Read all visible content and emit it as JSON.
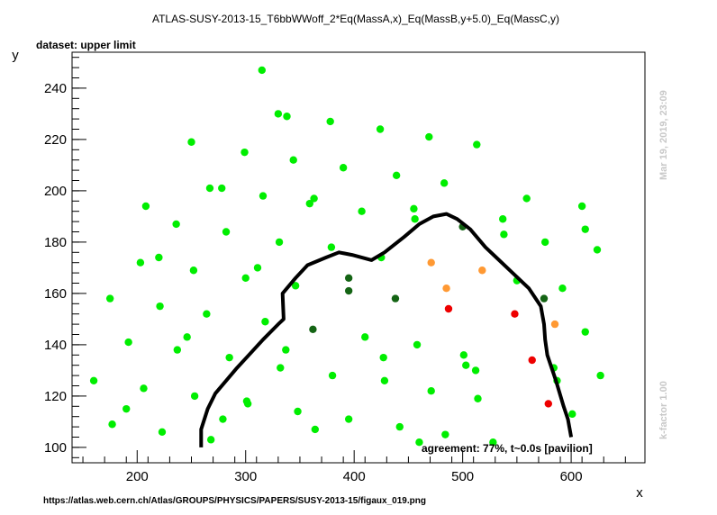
{
  "chart_data": {
    "type": "scatter",
    "title": "ATLAS-SUSY-2013-15_T6bbWWoff_2*Eq(MassA,x)_Eq(MassB,y+5.0)_Eq(MassC,y)",
    "subtitle": "dataset: upper limit",
    "xlabel": "x",
    "ylabel": "y",
    "xlim": [
      140,
      668
    ],
    "ylim": [
      94,
      254
    ],
    "x_ticks": [
      200,
      300,
      400,
      500,
      600
    ],
    "y_ticks": [
      100,
      120,
      140,
      160,
      180,
      200,
      220,
      240
    ],
    "grid": false,
    "colors": {
      "bright_green": "#00ee00",
      "dark_green": "#146414",
      "orange": "#ff9933",
      "red": "#ee0000",
      "curve": "#000000",
      "side_text": "#c8c8c8"
    },
    "series": [
      {
        "color": "bright_green",
        "points": [
          [
            160,
            126
          ],
          [
            175,
            158
          ],
          [
            177,
            109
          ],
          [
            190,
            115
          ],
          [
            192,
            141
          ],
          [
            203,
            172
          ],
          [
            206,
            123
          ],
          [
            208,
            194
          ],
          [
            220,
            174
          ],
          [
            221,
            155
          ],
          [
            223,
            106
          ],
          [
            236,
            187
          ],
          [
            237,
            138
          ],
          [
            246,
            143
          ],
          [
            250,
            219
          ],
          [
            252,
            169
          ],
          [
            253,
            120
          ],
          [
            264,
            152
          ],
          [
            267,
            201
          ],
          [
            268,
            103
          ],
          [
            278,
            201
          ],
          [
            279,
            111
          ],
          [
            282,
            184
          ],
          [
            285,
            135
          ],
          [
            299,
            215
          ],
          [
            300,
            166
          ],
          [
            301,
            118
          ],
          [
            302,
            117
          ],
          [
            311,
            170
          ],
          [
            315,
            247
          ],
          [
            316,
            198
          ],
          [
            318,
            149
          ],
          [
            330,
            230
          ],
          [
            331,
            180
          ],
          [
            332,
            131
          ],
          [
            337,
            138
          ],
          [
            338,
            229
          ],
          [
            344,
            212
          ],
          [
            346,
            163
          ],
          [
            348,
            114
          ],
          [
            359,
            195
          ],
          [
            363,
            197
          ],
          [
            364,
            107
          ],
          [
            378,
            227
          ],
          [
            379,
            178
          ],
          [
            380,
            128
          ],
          [
            390,
            209
          ],
          [
            395,
            111
          ],
          [
            407,
            192
          ],
          [
            410,
            143
          ],
          [
            424,
            224
          ],
          [
            425,
            174
          ],
          [
            427,
            135
          ],
          [
            428,
            126
          ],
          [
            439,
            206
          ],
          [
            442,
            108
          ],
          [
            455,
            193
          ],
          [
            456,
            189
          ],
          [
            458,
            140
          ],
          [
            460,
            102
          ],
          [
            469,
            221
          ],
          [
            471,
            122
          ],
          [
            483,
            203
          ],
          [
            484,
            105
          ],
          [
            501,
            136
          ],
          [
            503,
            132
          ],
          [
            512,
            130
          ],
          [
            513,
            218
          ],
          [
            514,
            119
          ],
          [
            528,
            102
          ],
          [
            537,
            189
          ],
          [
            538,
            183
          ],
          [
            550,
            165
          ],
          [
            559,
            197
          ],
          [
            576,
            180
          ],
          [
            584,
            131
          ],
          [
            587,
            126
          ],
          [
            592,
            162
          ],
          [
            601,
            113
          ],
          [
            610,
            194
          ],
          [
            613,
            185
          ],
          [
            613,
            145
          ],
          [
            624,
            177
          ],
          [
            627,
            128
          ]
        ]
      },
      {
        "color": "dark_green",
        "points": [
          [
            362,
            146
          ],
          [
            395,
            166
          ],
          [
            395,
            161
          ],
          [
            438,
            158
          ],
          [
            500,
            186
          ],
          [
            575,
            158
          ]
        ]
      },
      {
        "color": "orange",
        "points": [
          [
            471,
            172
          ],
          [
            485,
            162
          ],
          [
            518,
            169
          ],
          [
            585,
            148
          ]
        ]
      },
      {
        "color": "red",
        "points": [
          [
            487,
            154
          ],
          [
            548,
            152
          ],
          [
            564,
            134
          ],
          [
            579,
            117
          ]
        ]
      }
    ],
    "exclusion_curve": [
      [
        259,
        100
      ],
      [
        259,
        107
      ],
      [
        265,
        115
      ],
      [
        272,
        121
      ],
      [
        284,
        127
      ],
      [
        292,
        131
      ],
      [
        303,
        136
      ],
      [
        316,
        142
      ],
      [
        330,
        148
      ],
      [
        335,
        150
      ],
      [
        334,
        160
      ],
      [
        346,
        166
      ],
      [
        357,
        171
      ],
      [
        374,
        174
      ],
      [
        386,
        176
      ],
      [
        398,
        175
      ],
      [
        416,
        173
      ],
      [
        428,
        176
      ],
      [
        446,
        182
      ],
      [
        460,
        187
      ],
      [
        473,
        190
      ],
      [
        485,
        191
      ],
      [
        495,
        189
      ],
      [
        507,
        185
      ],
      [
        521,
        178
      ],
      [
        531,
        174
      ],
      [
        546,
        168
      ],
      [
        561,
        162
      ],
      [
        572,
        155
      ],
      [
        575,
        148
      ],
      [
        576,
        142
      ],
      [
        578,
        136
      ],
      [
        586,
        126
      ],
      [
        593,
        116
      ],
      [
        597,
        111
      ],
      [
        600,
        104
      ]
    ],
    "annotations": {
      "agreement": "agreement: 77%, t~0.0s [pavilion]",
      "timestamp": "Mar 19, 2019, 23:09",
      "k_factor": "k-factor 1.00",
      "source_url": "https://atlas.web.cern.ch/Atlas/GROUPS/PHYSICS/PAPERS/SUSY-2013-15/figaux_019.png"
    }
  }
}
